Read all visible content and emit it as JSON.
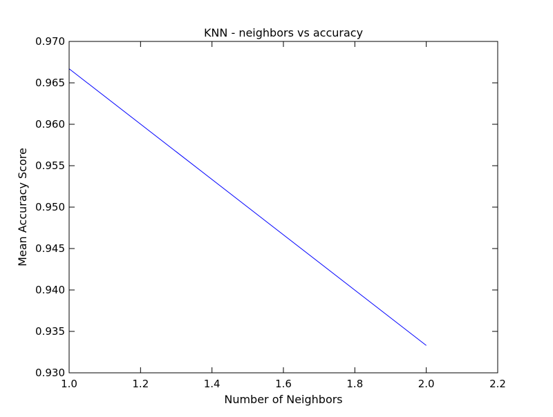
{
  "chart_data": {
    "type": "line",
    "title": "KNN - neighbors vs accuracy",
    "xlabel": "Number of Neighbors",
    "ylabel": "Mean Accuracy Score",
    "xlim": [
      1.0,
      2.2
    ],
    "ylim": [
      0.93,
      0.97
    ],
    "xticks": [
      "1.0",
      "1.2",
      "1.4",
      "1.6",
      "1.8",
      "2.0",
      "2.2"
    ],
    "yticks": [
      "0.930",
      "0.935",
      "0.940",
      "0.945",
      "0.950",
      "0.955",
      "0.960",
      "0.965",
      "0.970"
    ],
    "grid": false,
    "series": [
      {
        "x": [
          1,
          2
        ],
        "values": [
          0.9667,
          0.9333
        ],
        "color": "#0000ff"
      }
    ]
  }
}
